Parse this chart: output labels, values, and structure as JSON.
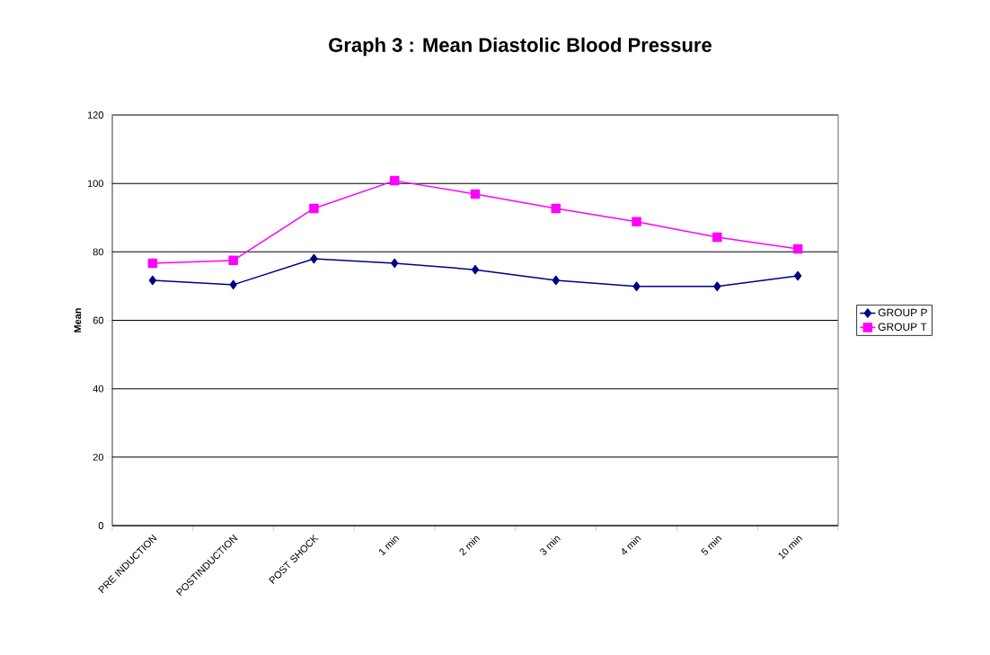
{
  "chart_data": {
    "type": "line",
    "title": "Graph 3 : Mean Diastolic Blood Pressure",
    "ylabel": "Mean",
    "categories": [
      "PRE INDUCTION",
      "POSTINDUCTION",
      "POST SHOCK",
      "1 min",
      "2 min",
      "3 min",
      "4 min",
      "5 min",
      "10 min"
    ],
    "series": [
      {
        "name": "GROUP P",
        "color": "#000080",
        "marker": "diamond",
        "values": [
          71.7,
          70.4,
          78.0,
          76.7,
          74.8,
          71.7,
          69.9,
          69.9,
          73.0
        ]
      },
      {
        "name": "GROUP T",
        "color": "#ff00ff",
        "marker": "square",
        "values": [
          76.7,
          77.5,
          92.7,
          100.8,
          96.9,
          92.7,
          88.8,
          84.3,
          80.9
        ]
      }
    ],
    "ylim": [
      0,
      120
    ],
    "yticks": [
      0,
      20,
      40,
      60,
      80,
      100,
      120
    ],
    "grid": "y",
    "legend": "right",
    "line_style": "solid"
  }
}
